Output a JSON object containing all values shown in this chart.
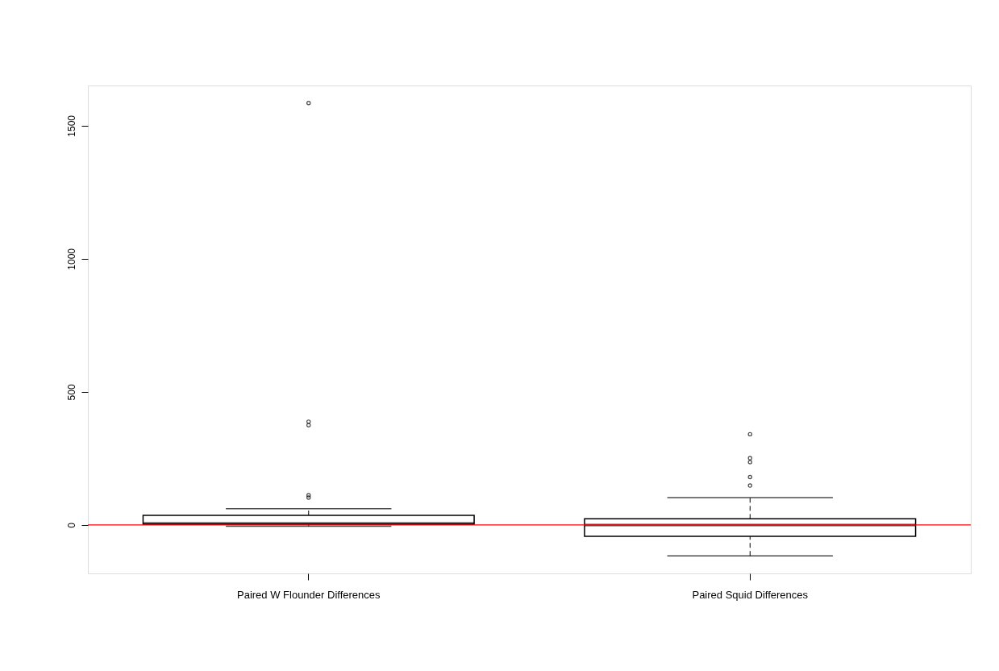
{
  "chart_data": {
    "type": "box",
    "categories": [
      "Paired W Flounder Differences",
      "Paired Squid Differences"
    ],
    "boxes": [
      {
        "low": -5,
        "q1": 3,
        "median": 6,
        "q3": 36,
        "high": 61,
        "outliers": [
          103,
          112,
          375,
          388,
          1585
        ]
      },
      {
        "low": -116,
        "q1": -43,
        "median": 0,
        "q3": 23,
        "high": 103,
        "outliers": [
          148,
          180,
          236,
          251,
          341
        ]
      }
    ],
    "ylim": [
      -182,
      1651
    ],
    "yticks": [
      0,
      500,
      1000,
      1500
    ],
    "ref_lines": [
      {
        "axis": "y",
        "value": 0,
        "color": "#ff0000"
      }
    ],
    "grid": false,
    "line_style": "dashed",
    "marker": "circle"
  }
}
